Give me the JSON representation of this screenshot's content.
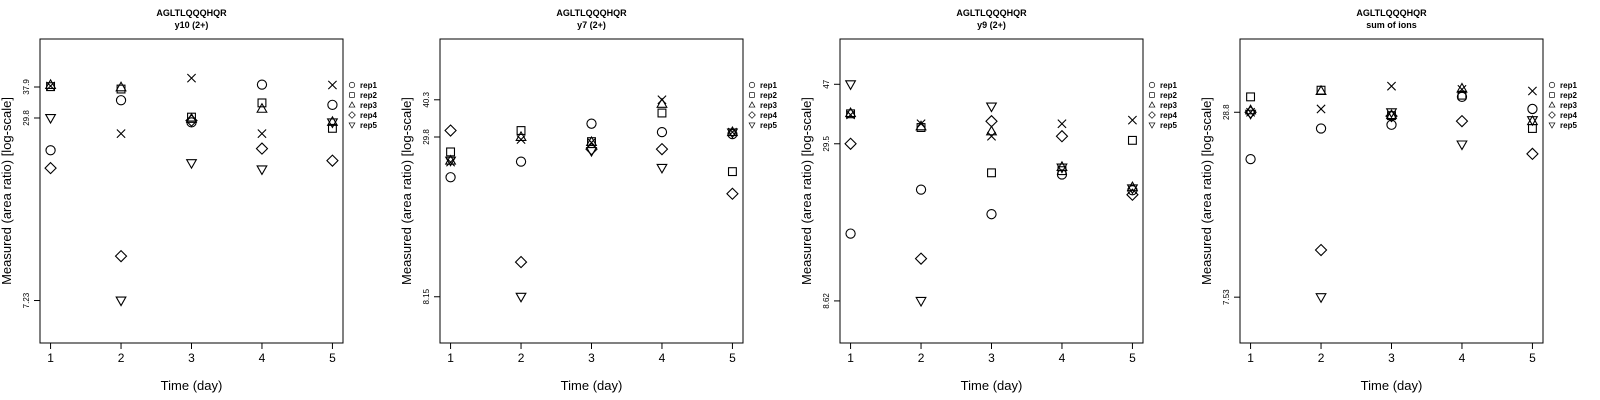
{
  "chart_data": [
    {
      "type": "scatter",
      "title": "AGLTLQQQHQR",
      "subtitle": "y10 (2+)",
      "xlabel": "Time (day)",
      "ylabel": "Measured (area ratio) [log-scale]",
      "x": [
        1,
        2,
        3,
        4,
        5
      ],
      "xlim": [
        0.85,
        5.15
      ],
      "y_scale": "log",
      "ylim": [
        5.2,
        55
      ],
      "y_ticks": [
        7.23,
        29.8,
        37.9
      ],
      "legend_position": "right",
      "series": [
        {
          "name": "rep1",
          "marker": "circle",
          "values": [
            23.2,
            34.2,
            28.8,
            38.6,
            33.0
          ]
        },
        {
          "name": "rep2",
          "marker": "square",
          "values": [
            38.0,
            37.3,
            30.0,
            33.5,
            27.5
          ]
        },
        {
          "name": "rep3",
          "marker": "triangle-up",
          "values": [
            38.5,
            37.8,
            29.6,
            32.0,
            28.9
          ]
        },
        {
          "name": "rep4",
          "marker": "diamond",
          "values": [
            20.2,
            10.2,
            29.2,
            23.5,
            21.4
          ]
        },
        {
          "name": "rep5",
          "marker": "triangle-down",
          "values": [
            29.8,
            7.23,
            21.0,
            20.0,
            28.8
          ]
        },
        {
          "name": "",
          "marker": "cross",
          "values": [
            38.2,
            26.4,
            40.6,
            26.4,
            38.5
          ]
        }
      ]
    },
    {
      "type": "scatter",
      "title": "AGLTLQQQHQR",
      "subtitle": "y7 (2+)",
      "xlabel": "Time (day)",
      "ylabel": "Measured (area ratio) [log-scale]",
      "x": [
        1,
        2,
        3,
        4,
        5
      ],
      "xlim": [
        0.85,
        5.15
      ],
      "y_scale": "log",
      "ylim": [
        5.6,
        66
      ],
      "y_ticks": [
        8.15,
        29.8,
        40.3
      ],
      "legend_position": "right",
      "series": [
        {
          "name": "rep1",
          "marker": "circle",
          "values": [
            21.5,
            24.4,
            33.2,
            31.0,
            30.5
          ]
        },
        {
          "name": "rep2",
          "marker": "square",
          "values": [
            26.4,
            31.4,
            28.7,
            36.2,
            22.5
          ]
        },
        {
          "name": "rep3",
          "marker": "triangle-up",
          "values": [
            24.6,
            29.8,
            28.6,
            39.0,
            31.0
          ]
        },
        {
          "name": "rep4",
          "marker": "diamond",
          "values": [
            31.4,
            10.8,
            27.0,
            27.0,
            18.8
          ]
        },
        {
          "name": "rep5",
          "marker": "triangle-down",
          "values": [
            24.6,
            8.15,
            26.6,
            23.2,
            30.9
          ]
        },
        {
          "name": "",
          "marker": "cross",
          "values": [
            24.3,
            29.2,
            28.5,
            40.3,
            31.0
          ]
        }
      ]
    },
    {
      "type": "scatter",
      "title": "AGLTLQQQHQR",
      "subtitle": "y9 (2+)",
      "xlabel": "Time (day)",
      "ylabel": "Measured (area ratio) [log-scale]",
      "x": [
        1,
        2,
        3,
        4,
        5
      ],
      "xlim": [
        0.85,
        5.15
      ],
      "y_scale": "log",
      "ylim": [
        6.2,
        67
      ],
      "y_ticks": [
        8.62,
        29.5,
        47
      ],
      "legend_position": "right",
      "series": [
        {
          "name": "rep1",
          "marker": "circle",
          "values": [
            14.6,
            20.6,
            17.0,
            23.2,
            20.5
          ]
        },
        {
          "name": "rep2",
          "marker": "square",
          "values": [
            37.3,
            33.5,
            23.5,
            23.9,
            30.3
          ]
        },
        {
          "name": "rep3",
          "marker": "triangle-up",
          "values": [
            37.5,
            33.8,
            32.5,
            24.6,
            21.0
          ]
        },
        {
          "name": "rep4",
          "marker": "diamond",
          "values": [
            29.5,
            12.0,
            35.2,
            31.3,
            19.8
          ]
        },
        {
          "name": "rep5",
          "marker": "triangle-down",
          "values": [
            47.0,
            8.62,
            39.5,
            24.5,
            20.8
          ]
        },
        {
          "name": "",
          "marker": "cross",
          "values": [
            37.0,
            34.5,
            31.3,
            34.5,
            35.5
          ]
        }
      ]
    },
    {
      "type": "scatter",
      "title": "AGLTLQQQHQR",
      "subtitle": "sum of ions",
      "xlabel": "Time (day)",
      "ylabel": "Measured (area ratio) [log-scale]",
      "x": [
        1,
        2,
        3,
        4,
        5
      ],
      "xlim": [
        0.85,
        5.15
      ],
      "y_scale": "log",
      "ylim": [
        5.4,
        49
      ],
      "y_ticks": [
        7.53,
        28.8
      ],
      "legend_position": "right",
      "series": [
        {
          "name": "rep1",
          "marker": "circle",
          "values": [
            20.5,
            25.6,
            26.3,
            32.2,
            29.5
          ]
        },
        {
          "name": "rep2",
          "marker": "square",
          "values": [
            32.2,
            33.8,
            28.1,
            32.6,
            25.6
          ]
        },
        {
          "name": "rep3",
          "marker": "triangle-up",
          "values": [
            29.2,
            33.6,
            28.2,
            34.2,
            27.0
          ]
        },
        {
          "name": "rep4",
          "marker": "diamond",
          "values": [
            28.8,
            10.6,
            28.0,
            27.0,
            21.3
          ]
        },
        {
          "name": "rep5",
          "marker": "triangle-down",
          "values": [
            28.5,
            7.53,
            28.8,
            22.8,
            27.2
          ]
        },
        {
          "name": "",
          "marker": "cross",
          "values": [
            28.8,
            29.5,
            34.8,
            34.0,
            33.6
          ]
        }
      ]
    }
  ]
}
